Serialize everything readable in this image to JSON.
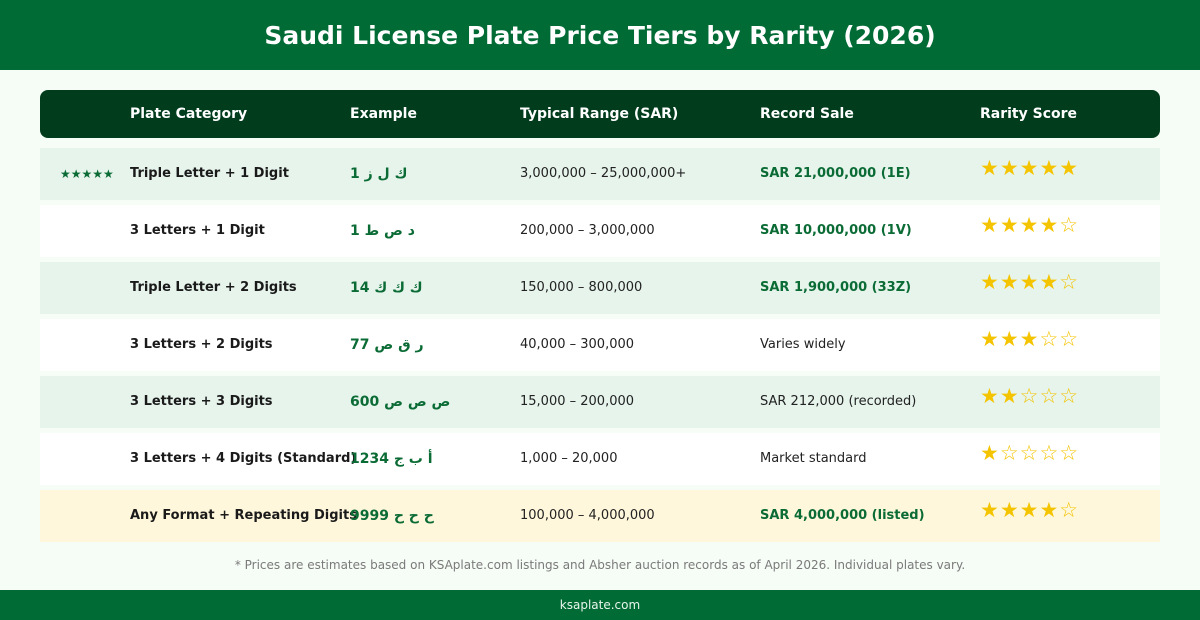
{
  "title": "Saudi License Plate Price Tiers by Rarity (2026)",
  "columns": {
    "category": "Plate Category",
    "example": "Example",
    "range": "Typical Range (SAR)",
    "record": "Record Sale",
    "rarity": "Rarity Score"
  },
  "rows": [
    {
      "badge": "★★★★★",
      "category": "Triple Letter + 1 Digit",
      "example": "ك ل ز 1",
      "range": "3,000,000 – 25,000,000+",
      "record": "SAR 21,000,000 (1E)",
      "record_highlight": true,
      "rarity_stars": "★★★★★",
      "rarity": 5,
      "style": "shade"
    },
    {
      "badge": "",
      "category": "3 Letters + 1 Digit",
      "example": "د ص ط 1",
      "range": "200,000 – 3,000,000",
      "record": "SAR 10,000,000 (1V)",
      "record_highlight": true,
      "rarity_stars": "★★★★☆",
      "rarity": 4,
      "style": "plain"
    },
    {
      "badge": "",
      "category": "Triple Letter + 2 Digits",
      "example": "ك ك ك 14",
      "range": "150,000 – 800,000",
      "record": "SAR 1,900,000 (33Z)",
      "record_highlight": true,
      "rarity_stars": "★★★★☆",
      "rarity": 4,
      "style": "shade"
    },
    {
      "badge": "",
      "category": "3 Letters + 2 Digits",
      "example": "ر ق ص 77",
      "range": "40,000 – 300,000",
      "record": "Varies widely",
      "record_highlight": false,
      "rarity_stars": "★★★☆☆",
      "rarity": 3,
      "style": "plain"
    },
    {
      "badge": "",
      "category": "3 Letters + 3 Digits",
      "example": "ص ص ص 600",
      "range": "15,000 – 200,000",
      "record": "SAR 212,000 (recorded)",
      "record_highlight": false,
      "rarity_stars": "★★☆☆☆",
      "rarity": 2,
      "style": "shade"
    },
    {
      "badge": "",
      "category": "3 Letters + 4 Digits (Standard)",
      "example": "أ ب ج 1234",
      "range": "1,000 – 20,000",
      "record": "Market standard",
      "record_highlight": false,
      "rarity_stars": "★☆☆☆☆",
      "rarity": 1,
      "style": "plain"
    },
    {
      "badge": "",
      "category": "Any Format + Repeating Digits",
      "example": "ح ح ح 9999",
      "range": "100,000 – 4,000,000",
      "record": "SAR 4,000,000 (listed)",
      "record_highlight": true,
      "rarity_stars": "★★★★☆",
      "rarity": 4,
      "style": "gold"
    }
  ],
  "footnote": "* Prices are estimates based on KSAplate.com listings and Absher auction records as of April 2026. Individual plates vary.",
  "footer": "ksaplate.com",
  "colors": {
    "brand_green": "#006b35",
    "header_dark": "#013d1d",
    "row_shade": "#e6f4ec",
    "row_gold": "#fff7dc",
    "accent_text": "#0b6b35",
    "star": "#f4c400"
  }
}
